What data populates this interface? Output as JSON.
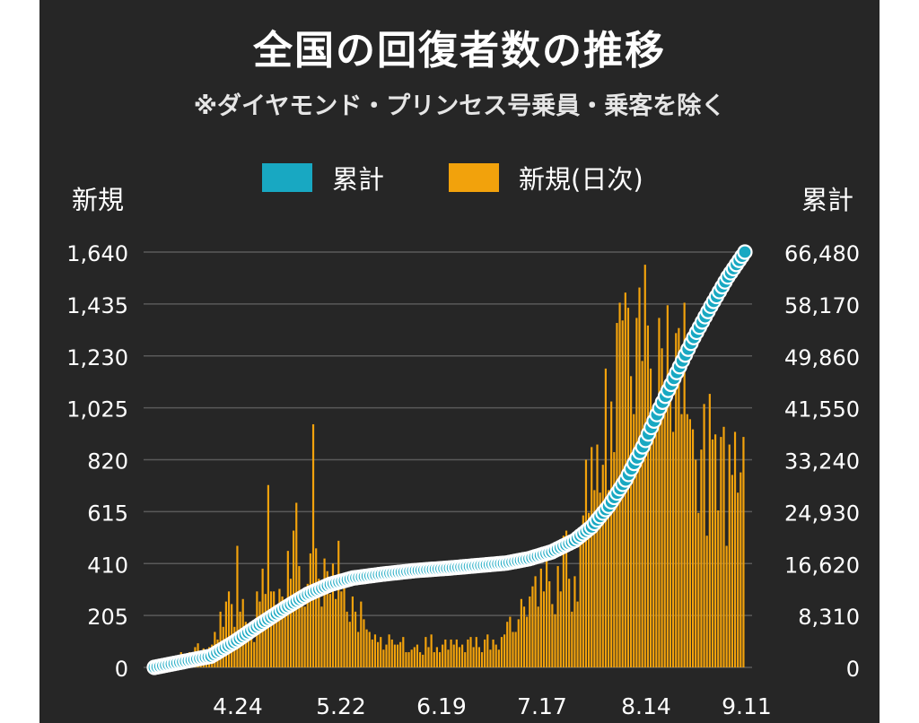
{
  "chart_data": {
    "type": "bar+line",
    "title": "全国の回復者数の推移",
    "subtitle": "※ダイヤモンド・プリンセス号乗員・乗客を除く",
    "ylabel_left": "新規",
    "ylabel_right": "累計",
    "legend": [
      {
        "label": "累計",
        "color": "#18a8c2"
      },
      {
        "label": "新規(日次)",
        "color": "#f2a20c"
      }
    ],
    "x_tick_labels": [
      "4.24",
      "5.22",
      "6.19",
      "7.17",
      "8.14",
      "9.11"
    ],
    "y_left": {
      "min": 0,
      "max": 1640,
      "ticks": [
        "0",
        "205",
        "410",
        "615",
        "820",
        "1,025",
        "1,230",
        "1,435",
        "1,640"
      ]
    },
    "y_right": {
      "min": 0,
      "max": 66480,
      "ticks": [
        "0",
        "8,310",
        "16,620",
        "24,930",
        "33,240",
        "41,550",
        "49,860",
        "58,170",
        "66,480"
      ]
    },
    "grid": true,
    "series": [
      {
        "name": "新規(日次)",
        "type": "bar",
        "color": "#f2a20c",
        "values": [
          2,
          5,
          8,
          6,
          10,
          15,
          22,
          30,
          45,
          60,
          20,
          40,
          60,
          35,
          80,
          95,
          40,
          75,
          60,
          80,
          90,
          140,
          110,
          220,
          160,
          260,
          300,
          250,
          160,
          480,
          220,
          270,
          180,
          120,
          180,
          100,
          300,
          260,
          390,
          290,
          720,
          300,
          300,
          220,
          310,
          280,
          200,
          460,
          350,
          540,
          650,
          400,
          300,
          240,
          330,
          450,
          960,
          470,
          350,
          240,
          430,
          380,
          290,
          410,
          270,
          500,
          300,
          330,
          220,
          180,
          280,
          220,
          140,
          260,
          190,
          150,
          140,
          110,
          130,
          100,
          120,
          70,
          90,
          130,
          110,
          90,
          90,
          100,
          120,
          60,
          60,
          70,
          80,
          90,
          60,
          50,
          120,
          80,
          130,
          60,
          80,
          60,
          90,
          110,
          70,
          110,
          90,
          110,
          80,
          90,
          60,
          110,
          120,
          80,
          120,
          80,
          60,
          110,
          130,
          70,
          110,
          90,
          70,
          120,
          130,
          180,
          200,
          140,
          140,
          190,
          270,
          240,
          200,
          280,
          320,
          360,
          240,
          390,
          300,
          450,
          340,
          250,
          210,
          400,
          300,
          520,
          540,
          350,
          220,
          360,
          260,
          530,
          600,
          820,
          610,
          870,
          700,
          880,
          690,
          800,
          1180,
          700,
          1050,
          850,
          1360,
          1440,
          1370,
          1480,
          1420,
          1150,
          1000,
          1380,
          1500,
          1210,
          1590,
          1350,
          1180,
          1030,
          950,
          1380,
          1260,
          1020,
          1430,
          1080,
          930,
          1320,
          1340,
          1000,
          1440,
          1000,
          980,
          940,
          820,
          610,
          860,
          1040,
          520,
          1080,
          900,
          920,
          620,
          910,
          950,
          480,
          880,
          760,
          930,
          690,
          770,
          910
        ],
        "note": "bar values estimated from the chart"
      },
      {
        "name": "累計",
        "type": "line",
        "color": "#18a8c2",
        "points": [
          [
            0,
            0
          ],
          [
            20,
            1800
          ],
          [
            28,
            4000
          ],
          [
            36,
            6500
          ],
          [
            46,
            9500
          ],
          [
            54,
            11700
          ],
          [
            62,
            13300
          ],
          [
            70,
            14300
          ],
          [
            80,
            14900
          ],
          [
            92,
            15500
          ],
          [
            104,
            15900
          ],
          [
            114,
            16300
          ],
          [
            124,
            16700
          ],
          [
            132,
            17400
          ],
          [
            140,
            18500
          ],
          [
            148,
            20300
          ],
          [
            154,
            22500
          ],
          [
            160,
            25800
          ],
          [
            166,
            30000
          ],
          [
            172,
            35300
          ],
          [
            178,
            41500
          ],
          [
            184,
            47200
          ],
          [
            190,
            52800
          ],
          [
            196,
            57800
          ],
          [
            202,
            62500
          ],
          [
            208,
            66480
          ]
        ]
      }
    ],
    "x_index_max": 208
  }
}
